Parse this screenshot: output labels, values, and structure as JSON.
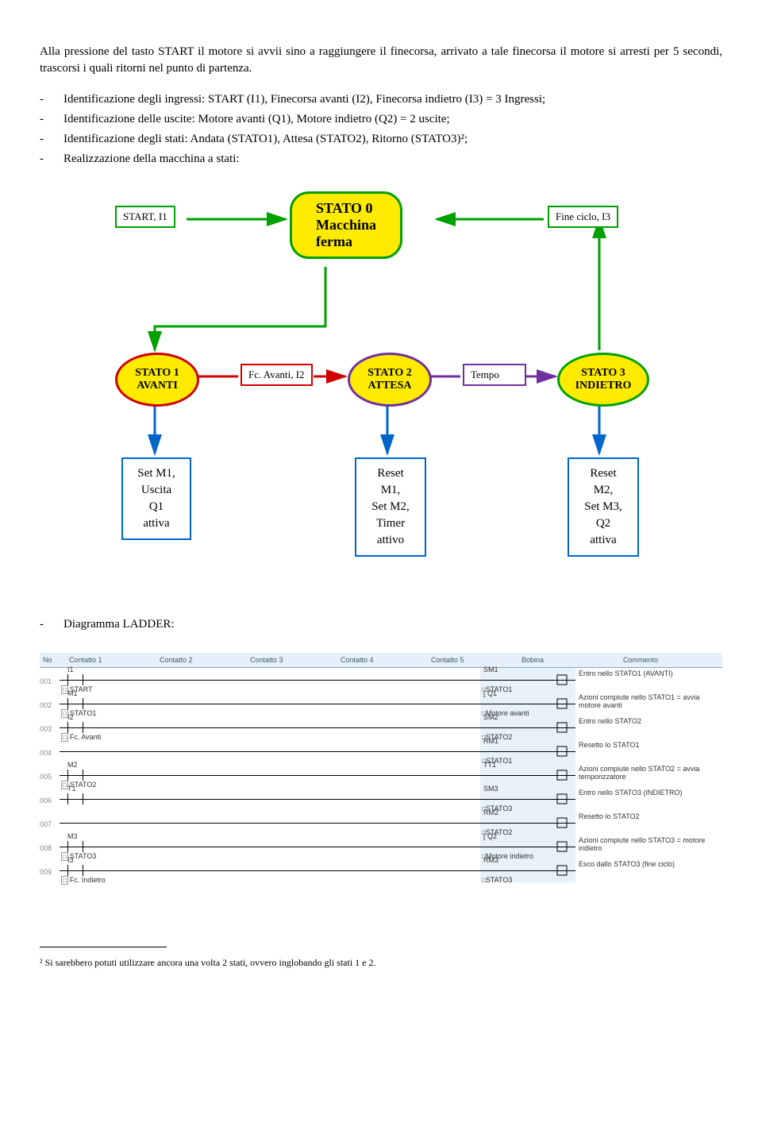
{
  "intro": "Alla pressione del tasto START il motore si avvii sino a raggiungere il finecorsa, arrivato a tale finecorsa il motore si arresti per 5 secondi, trascorsi i quali ritorni nel punto di partenza.",
  "bullets": [
    "Identificazione degli ingressi: START (I1), Finecorsa avanti (I2), Finecorsa indietro (I3) = 3 Ingressi;",
    "Identificazione delle uscite: Motore avanti (Q1), Motore indietro (Q2) = 2 uscite;",
    "Identificazione degli stati: Andata (STATO1), Attesa (STATO2), Ritorno (STATO3)²;",
    "Realizzazione della macchina a stati:"
  ],
  "diagram": {
    "start_label": "START, I1",
    "state0_line1": "STATO 0",
    "state0_line2": "Macchina",
    "state0_line3": "ferma",
    "fineciclo": "Fine ciclo, I3",
    "state1_label1": "STATO 1",
    "state1_label2": "AVANTI",
    "fc_avanti": "Fc. Avanti, I2",
    "state2_label1": "STATO 2",
    "state2_label2": "ATTESA",
    "tempo": "Tempo",
    "state3_label1": "STATO 3",
    "state3_label2": "INDIETRO",
    "action1_l1": "Set M1,",
    "action1_l2": "Uscita",
    "action1_l3": "Q1",
    "action1_l4": "attiva",
    "action2_l1": "Reset",
    "action2_l2": "M1,",
    "action2_l3": "Set M2,",
    "action2_l4": "Timer",
    "action2_l5": "attivo",
    "action3_l1": "Reset",
    "action3_l2": "M2,",
    "action3_l3": "Set M3,",
    "action3_l4": "Q2",
    "action3_l5": "attiva",
    "colors": {
      "green": "#00a000",
      "red": "#d00000",
      "purple": "#7030a0",
      "blue": "#0066cc",
      "yellow": "#ffeb00"
    }
  },
  "ladder_title": "Diagramma LADDER:",
  "ladder_headers": [
    "No",
    "Contatto 1",
    "Contatto 2",
    "Contatto 3",
    "Contatto 4",
    "Contatto 5",
    "Bobina",
    "Commento"
  ],
  "ladder_rows": [
    {
      "no": "001",
      "c1": "I1",
      "ref1": "START",
      "coil": "SM1",
      "coil_ref": "STATO1",
      "comment": "Entro nello STATO1 (AVANTI)"
    },
    {
      "no": "002",
      "c1": "M1",
      "ref1": "STATO1",
      "coil": "[ Q1",
      "coil_ref": "Motore avanti",
      "comment": "Azioni compiute nello STATO1 = avvia motore avanti"
    },
    {
      "no": "003",
      "c1": "I2",
      "ref1": "Fc. Avanti",
      "coil": "SM2",
      "coil_ref": "STATO2",
      "comment": "Entro nello STATO2"
    },
    {
      "no": "004",
      "c1": "",
      "ref1": "",
      "coil": "RM1",
      "coil_ref": "STATO1",
      "comment": "Resetto lo STATO1"
    },
    {
      "no": "005",
      "c1": "M2",
      "ref1": "STATO2",
      "coil": "TT1",
      "coil_ref": "",
      "comment": "Azioni compiute nello STATO2 = avvia temporizzatore"
    },
    {
      "no": "006",
      "c1": "T1",
      "ref1": "",
      "coil": "SM3",
      "coil_ref": "STATO3",
      "comment": "Entro nello STATO3 (INDIETRO)"
    },
    {
      "no": "007",
      "c1": "",
      "ref1": "",
      "coil": "RM2",
      "coil_ref": "STATO2",
      "comment": "Resetto lo STATO2"
    },
    {
      "no": "008",
      "c1": "M3",
      "ref1": "STATO3",
      "coil": "[ Q2",
      "coil_ref": "Motore indietro",
      "comment": "Azioni compiute nello STATO3 = motore indietro"
    },
    {
      "no": "009",
      "c1": "I3",
      "ref1": "Fc. Indietro",
      "coil": "RM3",
      "coil_ref": "STATO3",
      "comment": "Esco dallo STATO3 (fine ciclo)"
    }
  ],
  "footnote": "² Si sarebbero potuti utilizzare ancora una volta 2 stati, ovvero inglobando gli stati 1 e 2."
}
